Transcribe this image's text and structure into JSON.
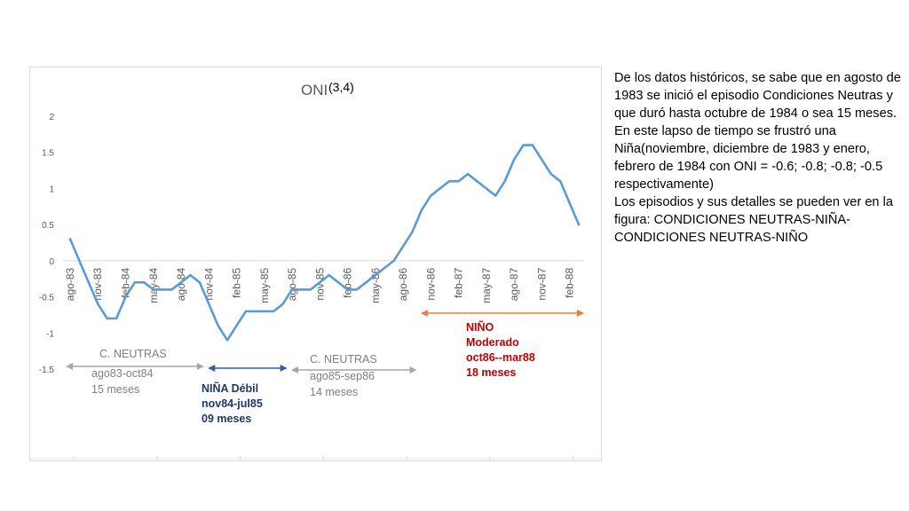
{
  "chart_data": {
    "type": "line",
    "title": "ONI",
    "title_note": "(3,4)",
    "ylim": [
      -1.5,
      2
    ],
    "yticks": [
      "2",
      "1.5",
      "1",
      "0.5",
      "0",
      "-0.5",
      "-1",
      "-1.5"
    ],
    "xtick_labels": [
      "ago-83",
      "nov-83",
      "feb-84",
      "may-84",
      "ago-84",
      "nov-84",
      "feb-85",
      "may-85",
      "ago-85",
      "nov-85",
      "feb-86",
      "may-86",
      "ago-86",
      "nov-86",
      "feb-87",
      "may-87",
      "ago-87",
      "nov-87",
      "feb-88"
    ],
    "grid": false,
    "line_color": "#5b9bd5",
    "series": [
      {
        "values": [
          0.3,
          0.0,
          -0.3,
          -0.6,
          -0.8,
          -0.8,
          -0.5,
          -0.3,
          -0.3,
          -0.4,
          -0.4,
          -0.4,
          -0.3,
          -0.2,
          -0.3,
          -0.6,
          -0.9,
          -1.1,
          -0.9,
          -0.7,
          -0.7,
          -0.7,
          -0.7,
          -0.6,
          -0.4,
          -0.4,
          -0.4,
          -0.3,
          -0.2,
          -0.3,
          -0.4,
          -0.4,
          -0.3,
          -0.2,
          -0.1,
          0.0,
          0.2,
          0.4,
          0.7,
          0.9,
          1.0,
          1.1,
          1.1,
          1.2,
          1.1,
          1.0,
          0.9,
          1.1,
          1.4,
          1.6,
          1.6,
          1.4,
          1.2,
          1.1,
          0.8,
          0.5
        ]
      }
    ],
    "periods": [
      {
        "label": "C. NEUTRAS",
        "range": "ago83-oct84",
        "duration": "15 meses",
        "start": 0,
        "end": 14,
        "color": "#a6a6a6",
        "text_color": "#7f7f7f"
      },
      {
        "label": "NIÑA  Débil",
        "range": "nov84-jul85",
        "duration": "09 meses",
        "start": 15,
        "end": 23,
        "color": "#2e5fac",
        "text_color": "#1f3864"
      },
      {
        "label": "C. NEUTRAS",
        "range": "ago85-sep86",
        "duration": "14 meses",
        "start": 24,
        "end": 37,
        "color": "#a6a6a6",
        "text_color": "#7f7f7f"
      },
      {
        "label": "NIÑO",
        "range": "Moderado",
        "duration": "oct86--mar88",
        "extra": "18 meses",
        "start": 38,
        "end": 55,
        "color": "#ed7d31",
        "text_color": "#c00000"
      }
    ]
  },
  "description": [
    "De los datos históricos, se sabe que  en agosto de 1983 se inició el episodio Condiciones Neutras  y que duró hasta octubre de 1984 o sea 15 meses.",
    "En este lapso de tiempo se frustró una Niña(noviembre, diciembre de 1983 y enero, febrero de 1984 con ONI = -0.6; -0.8; -0.8; -0.5 respectivamente)",
    "Los episodios y sus detalles se pueden ver en la figura: CONDICIONES NEUTRAS-NIÑA-CONDICIONES NEUTRAS-NIÑO"
  ]
}
